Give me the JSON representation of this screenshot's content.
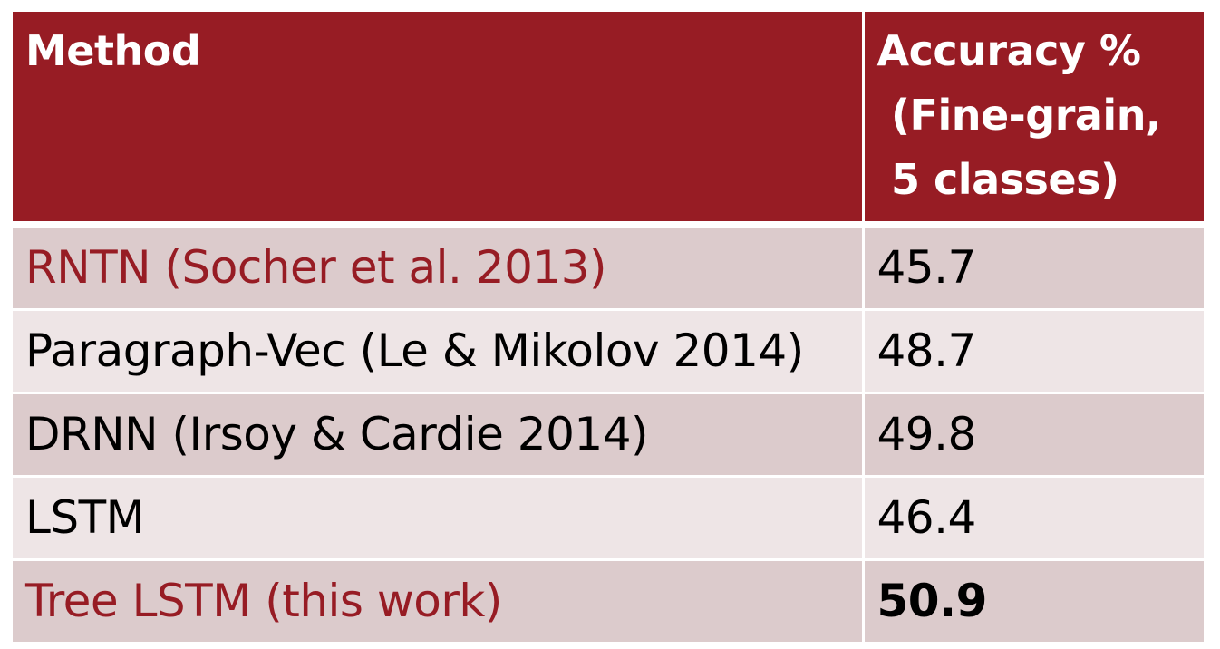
{
  "table": {
    "header": {
      "method": "Method",
      "accuracy_lines": [
        "Accuracy %",
        " (Fine-grain,",
        " 5 classes)"
      ]
    },
    "rows": [
      {
        "method": "RNTN (Socher et al. 2013)",
        "accuracy": "45.7"
      },
      {
        "method": "Paragraph-Vec (Le & Mikolov 2014)",
        "accuracy": "48.7"
      },
      {
        "method": "DRNN (Irsoy & Cardie 2014)",
        "accuracy": "49.8"
      },
      {
        "method": "LSTM",
        "accuracy": "46.4"
      },
      {
        "method": "Tree LSTM (this work)",
        "accuracy": "50.9"
      }
    ]
  },
  "colors": {
    "header_bg": "#971c24",
    "header_text": "#ffffff",
    "row_dark": "#dccbcc",
    "row_light": "#eee5e6",
    "highlight_text": "#971c24"
  }
}
